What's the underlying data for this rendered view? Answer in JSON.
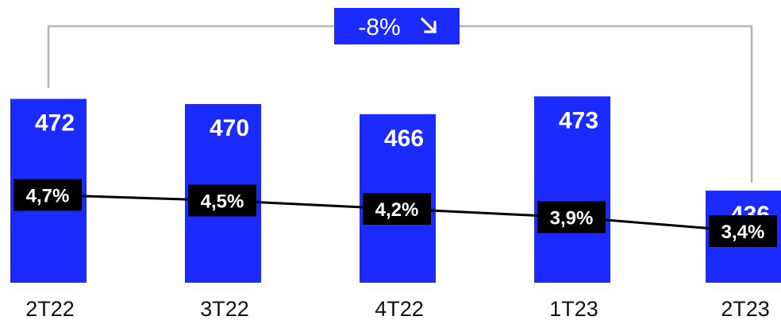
{
  "colors": {
    "bar": "#1b2bff",
    "line": "#000000",
    "bracket": "#b5b5b5"
  },
  "chart_data": {
    "type": "bar",
    "categories": [
      "2T22",
      "3T22",
      "4T22",
      "1T23",
      "2T23"
    ],
    "series": [
      {
        "values": [
          472,
          470,
          466,
          473,
          436
        ],
        "labels": [
          "472",
          "470",
          "466",
          "473",
          "436"
        ]
      },
      {
        "values": [
          4.7,
          4.5,
          4.2,
          3.9,
          3.4
        ],
        "labels": [
          "4,7%",
          "4,5%",
          "4,2%",
          "3,9%",
          "3,4%"
        ]
      }
    ],
    "annotations": [
      {
        "from": "2T22",
        "to": "2T23",
        "text": "-8%",
        "direction": "down"
      }
    ],
    "title": "",
    "xlabel": "",
    "ylabel": "",
    "grid": false
  }
}
